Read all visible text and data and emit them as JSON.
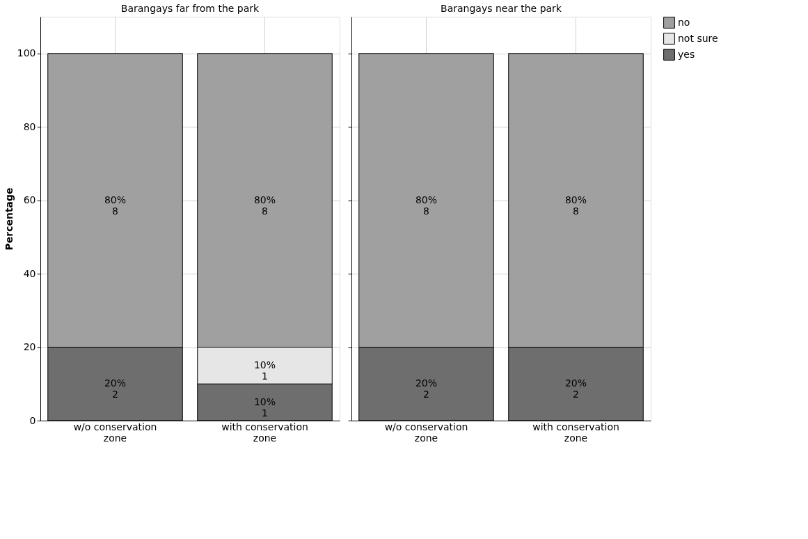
{
  "chart_data": [
    {
      "type": "bar",
      "stacked": true,
      "title": "Barangays far from the park",
      "ylabel": "Percentage",
      "categories": [
        "w/o conservation zone",
        "with conservation zone"
      ],
      "ylim": [
        0,
        110
      ],
      "yticks": [
        0,
        20,
        40,
        60,
        80,
        100
      ],
      "grid": true,
      "legend": false,
      "series": [
        {
          "color": "#6e6e6e",
          "values": [
            20,
            10
          ],
          "value_labels": [
            "20%\n2",
            "10%\n1"
          ]
        },
        {
          "color": "#e6e6e6",
          "values": [
            null,
            10
          ],
          "value_labels": [
            null,
            "10%\n1"
          ]
        },
        {
          "color": "#a0a0a0",
          "values": [
            80,
            80
          ],
          "value_labels": [
            "80%\n8",
            "80%\n8"
          ]
        }
      ]
    },
    {
      "type": "bar",
      "stacked": true,
      "title": "Barangays near the park",
      "categories": [
        "w/o conservation zone",
        "with conservation zone"
      ],
      "ylim": [
        0,
        110
      ],
      "yticks": [
        0,
        20,
        40,
        60,
        80,
        100
      ],
      "grid": true,
      "legend": "right",
      "tick_labels": "x",
      "series": [
        {
          "name": "yes",
          "color": "#6e6e6e",
          "values": [
            20,
            20
          ],
          "value_labels": [
            "20%\n2",
            "20%\n2"
          ]
        },
        {
          "name": "not sure",
          "color": "#e6e6e6",
          "values": [
            null,
            null
          ],
          "value_labels": [
            null,
            null
          ]
        },
        {
          "name": "no",
          "color": "#a0a0a0",
          "values": [
            80,
            80
          ],
          "value_labels": [
            "80%\n8",
            "80%\n8"
          ]
        }
      ]
    }
  ]
}
